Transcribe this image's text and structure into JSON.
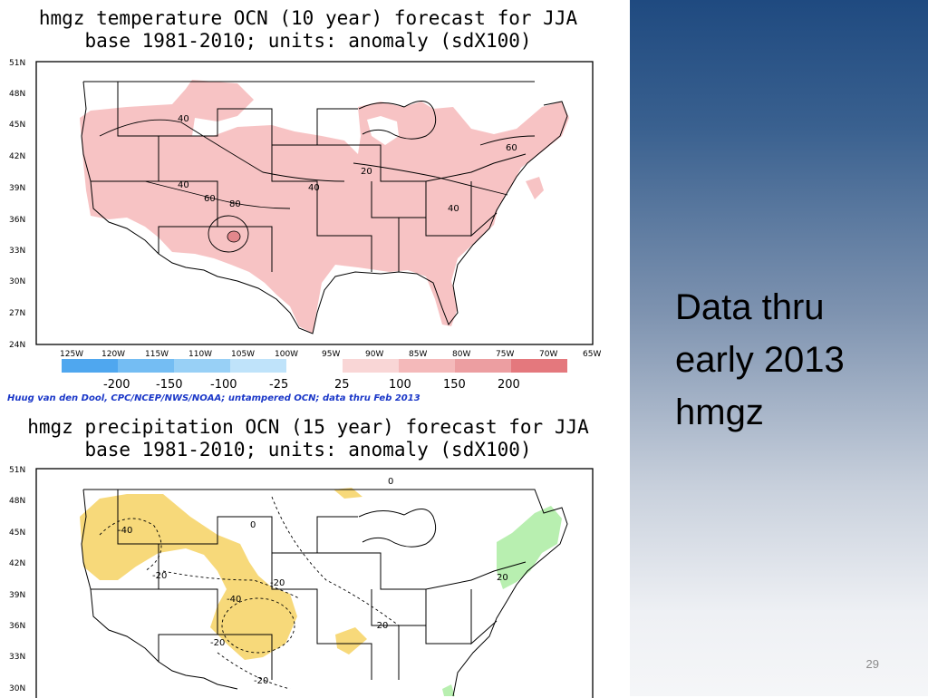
{
  "slide": {
    "side_text": [
      "Data thru",
      "early 2013",
      "hmgz"
    ],
    "page_number": "29"
  },
  "colors": {
    "warm_anomaly": "#f7c3c4",
    "warm_anomaly_strong": "#e3878c",
    "dry_anomaly": "#f7d97a",
    "wet_anomaly": "#b8efb0",
    "credit_text": "#1a37c8",
    "background_top": "#1f4a80"
  },
  "maps": [
    {
      "title_line1": "hmgz temperature OCN (10 year) forecast for JJA",
      "title_line2": "base 1981-2010; units: anomaly (sdX100)",
      "lat_ticks": [
        "51N",
        "48N",
        "45N",
        "42N",
        "39N",
        "36N",
        "33N",
        "30N",
        "27N",
        "24N"
      ],
      "lon_ticks": [
        "125W",
        "120W",
        "115W",
        "110W",
        "105W",
        "100W",
        "95W",
        "90W",
        "85W",
        "80W",
        "75W",
        "70W",
        "65W"
      ],
      "contour_labels": [
        "40",
        "40",
        "60",
        "80",
        "20",
        "40",
        "40",
        "60"
      ],
      "legend": {
        "labels": [
          "-200",
          "-150",
          "-100",
          "-25",
          "25",
          "100",
          "150",
          "200"
        ],
        "colors": [
          "#4fa7ef",
          "#74bdf3",
          "#98d0f6",
          "#bfe3fa",
          "#ffffff",
          "#f9d6d6",
          "#f4b9ba",
          "#ec9ea1",
          "#e4787d"
        ]
      }
    },
    {
      "title_line1": "hmgz precipitation OCN (15 year) forecast for JJA",
      "title_line2": "base 1981-2010; units: anomaly (sdX100)",
      "lat_ticks": [
        "51N",
        "48N",
        "45N",
        "42N",
        "39N",
        "36N",
        "33N",
        "30N"
      ],
      "contour_labels": [
        "-40",
        "-20",
        "-20",
        "-40",
        "-20",
        "-20",
        "-20",
        "20",
        "0",
        "0"
      ]
    }
  ],
  "credit": "Huug van den Dool, CPC/NCEP/NWS/NOAA; untampered OCN; data thru Feb 2013"
}
